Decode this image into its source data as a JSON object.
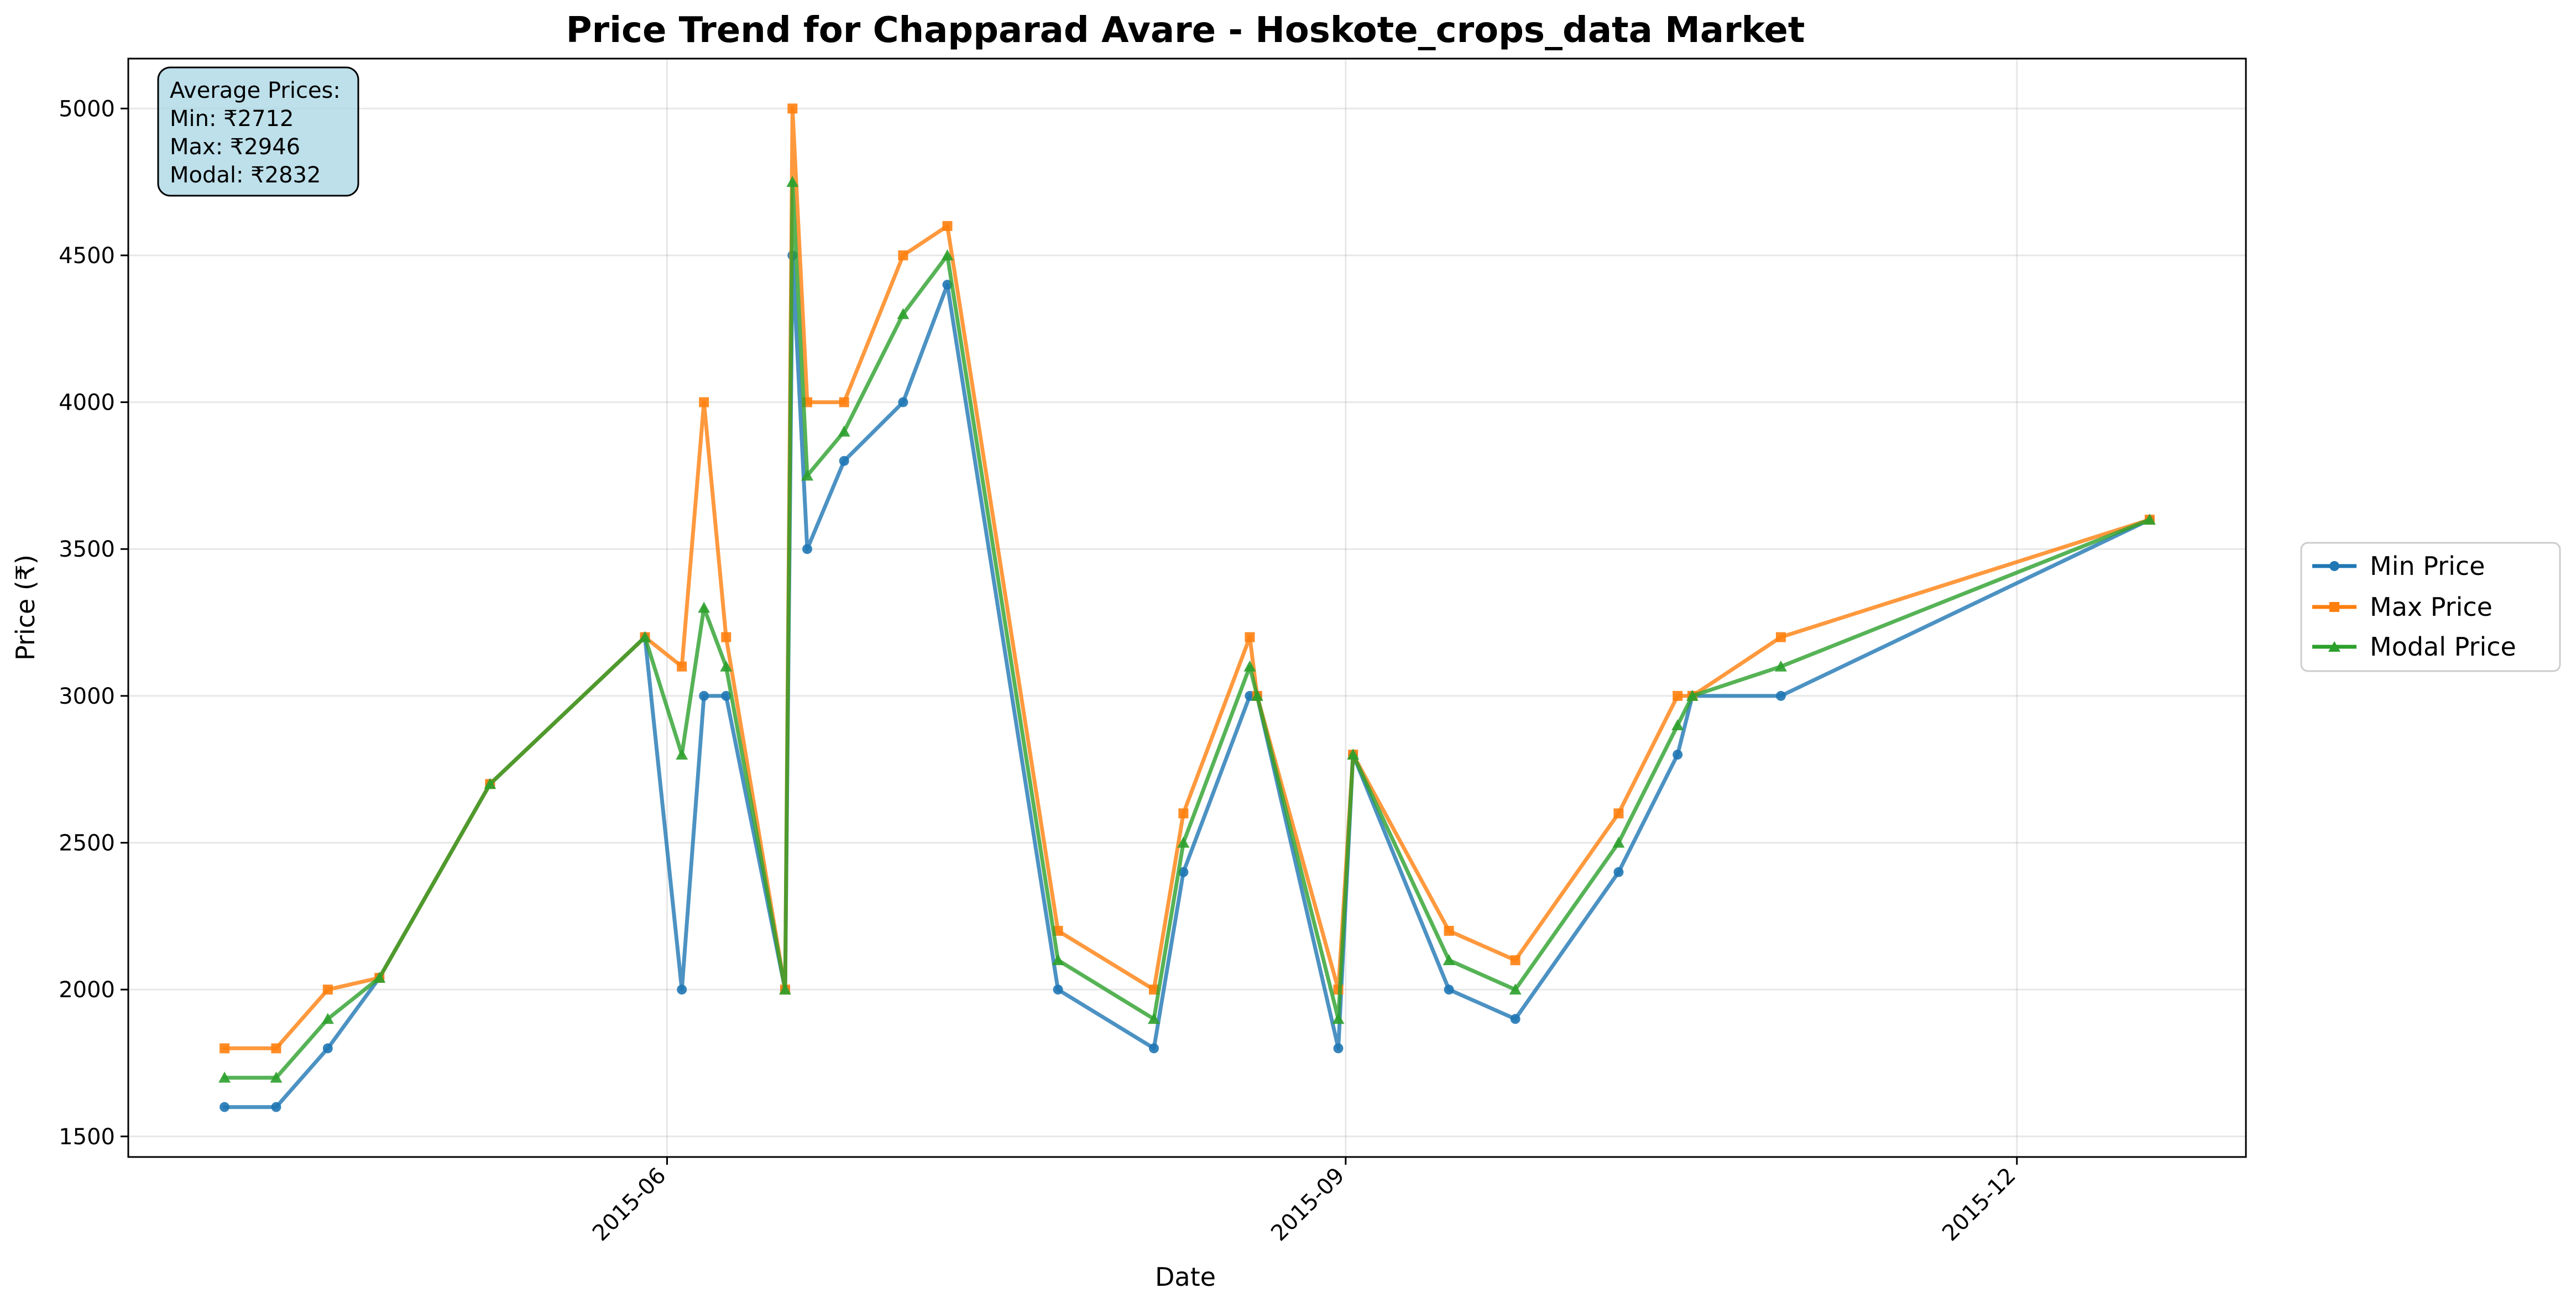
{
  "chart_data": {
    "type": "line",
    "title": "Price Trend for Chapparad Avare - Hoskote_crops_data Market",
    "xlabel": "Date",
    "ylabel": "Price (₹)",
    "x_ticks": [
      "2015-06",
      "2015-09",
      "2015-12"
    ],
    "y_ticks": [
      1500,
      2000,
      2500,
      3000,
      3500,
      4000,
      4500,
      5000
    ],
    "ylim": [
      1430,
      5170
    ],
    "grid": true,
    "legend_position": "right",
    "x": [
      "2015-04-02",
      "2015-04-09",
      "2015-04-16",
      "2015-04-23",
      "2015-05-08",
      "2015-05-29",
      "2015-06-03",
      "2015-06-06",
      "2015-06-09",
      "2015-06-17",
      "2015-06-18",
      "2015-06-20",
      "2015-06-25",
      "2015-07-03",
      "2015-07-09",
      "2015-07-24",
      "2015-08-06",
      "2015-08-10",
      "2015-08-19",
      "2015-08-20",
      "2015-08-31",
      "2015-09-02",
      "2015-09-15",
      "2015-09-24",
      "2015-10-08",
      "2015-10-16",
      "2015-10-18",
      "2015-10-30",
      "2015-12-19"
    ],
    "series": [
      {
        "name": "Min Price",
        "color": "#1f77b4",
        "marker": "circle",
        "values": [
          1600,
          1600,
          1800,
          2040,
          2700,
          3200,
          2000,
          3000,
          3000,
          2000,
          4500,
          3500,
          3800,
          4000,
          4400,
          2000,
          1800,
          2400,
          3000,
          3000,
          1800,
          2800,
          2000,
          1900,
          2400,
          2800,
          3000,
          3000,
          3600
        ]
      },
      {
        "name": "Max Price",
        "color": "#ff7f0e",
        "marker": "square",
        "values": [
          1800,
          1800,
          2000,
          2040,
          2700,
          3200,
          3100,
          4000,
          3200,
          2000,
          5000,
          4000,
          4000,
          4500,
          4600,
          2200,
          2000,
          2600,
          3200,
          3000,
          2000,
          2800,
          2200,
          2100,
          2600,
          3000,
          3000,
          3200,
          3600
        ]
      },
      {
        "name": "Modal Price",
        "color": "#2ca02c",
        "marker": "triangle",
        "values": [
          1700,
          1700,
          1900,
          2040,
          2700,
          3200,
          2800,
          3300,
          3100,
          2000,
          4750,
          3750,
          3900,
          4300,
          4500,
          2100,
          1900,
          2500,
          3100,
          3000,
          1900,
          2800,
          2100,
          2000,
          2500,
          2900,
          3000,
          3100,
          3600
        ]
      }
    ],
    "annotation": {
      "title": "Average Prices:",
      "lines": [
        "Min: ₹2712",
        "Max: ₹2946",
        "Modal: ₹2832"
      ],
      "background": "#add8e6"
    }
  }
}
